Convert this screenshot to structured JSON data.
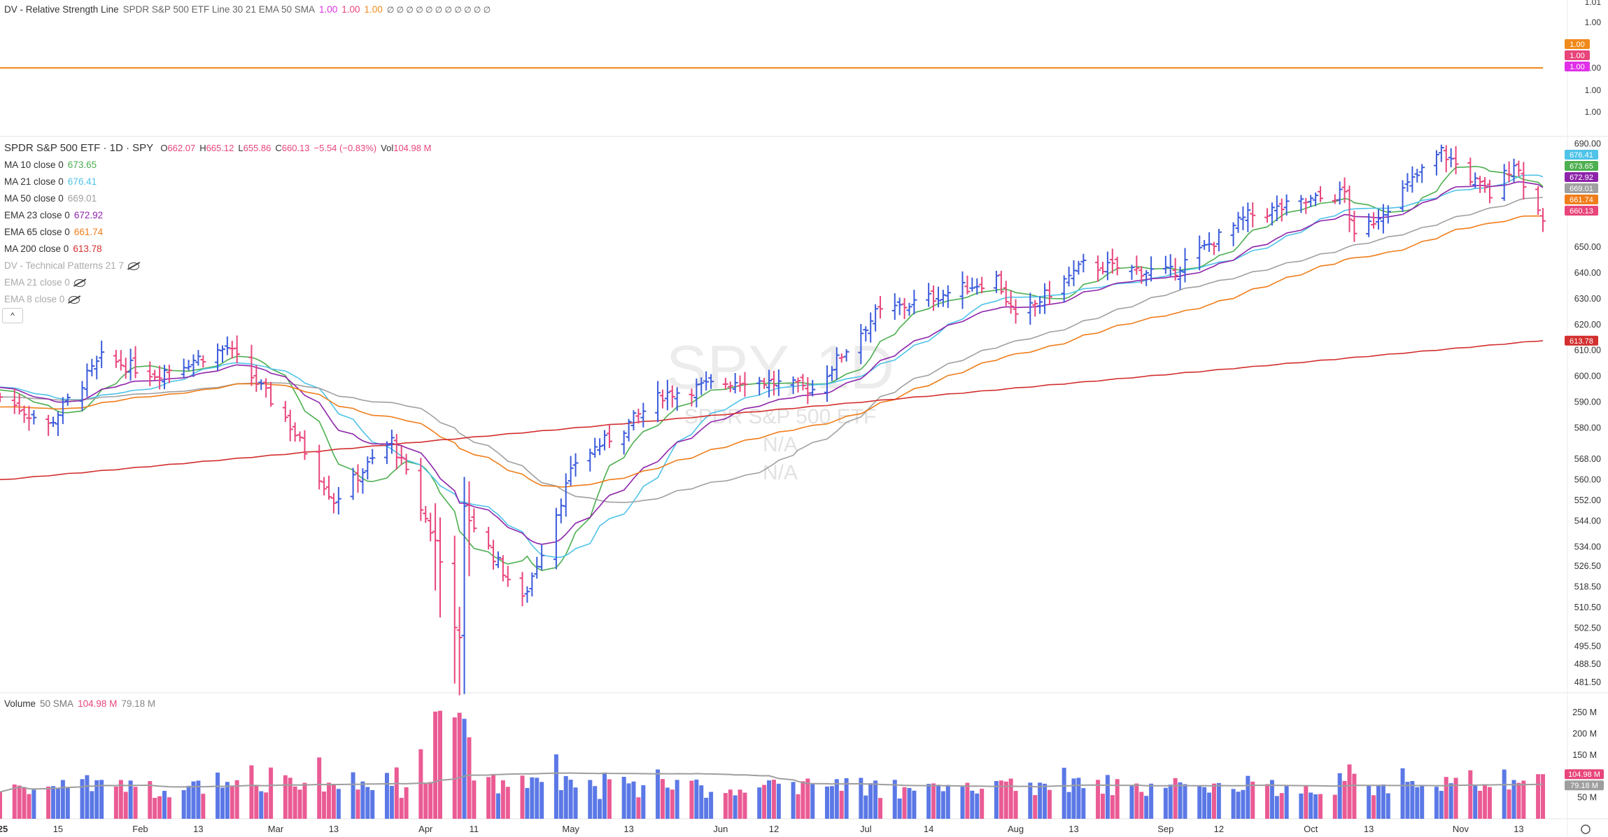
{
  "rs_legend": {
    "title": "DV - Relative Strength Line",
    "params": "SPDR S&P 500 ETF Line 30 21 EMA 50 SMA",
    "v1": "1.00",
    "v2": "1.00",
    "v3": "1.00",
    "tail": "∅ ∅ ∅ ∅ ∅ ∅ ∅ ∅ ∅ ∅ ∅"
  },
  "rs_axis": {
    "ticks": [
      "1.01",
      "1.00",
      "1.00",
      "1.00",
      "1.00"
    ],
    "tags": [
      {
        "label": "1.00",
        "color": "#f08a1c"
      },
      {
        "label": "1.00",
        "color": "#e8457a"
      },
      {
        "label": "1.00",
        "color": "#e030e8"
      }
    ]
  },
  "header": {
    "symbol_line": "SPDR S&P 500 ETF · 1D · SPY",
    "o_label": "O",
    "o": "662.07",
    "h_label": "H",
    "h": "665.12",
    "l_label": "L",
    "l": "655.86",
    "c_label": "C",
    "c": "660.13",
    "change": "−5.54 (−0.83%)",
    "vol_label": "Vol",
    "vol": "104.98 M"
  },
  "indicators": [
    {
      "label": "MA 10 close 0",
      "value": "673.65",
      "color": "#4caf50"
    },
    {
      "label": "MA 21 close 0",
      "value": "676.41",
      "color": "#4fc3e8"
    },
    {
      "label": "MA 50 close 0",
      "value": "669.01",
      "color": "#a0a0a0"
    },
    {
      "label": "EMA 23 close 0",
      "value": "672.92",
      "color": "#8e24aa"
    },
    {
      "label": "EMA 65 close 0",
      "value": "661.74",
      "color": "#ef7d1a"
    },
    {
      "label": "MA 200 close 0",
      "value": "613.78",
      "color": "#d32f2f"
    }
  ],
  "hidden_indicators": [
    {
      "label": "DV - Technical Patterns 21 7"
    },
    {
      "label": "EMA 21 close 0"
    },
    {
      "label": "EMA 8 close 0"
    }
  ],
  "collapse_label": "^",
  "watermark": {
    "symbol": "SPY, 1D",
    "name": "SPDR S&P 500 ETF",
    "l1": "N/A",
    "l2": "N/A"
  },
  "price_axis": {
    "ticks": [
      "690.00",
      "650.00",
      "640.00",
      "630.00",
      "620.00",
      "610.00",
      "600.00",
      "590.00",
      "580.00",
      "568.00",
      "560.00",
      "552.00",
      "544.00",
      "534.00",
      "526.50",
      "518.50",
      "510.50",
      "502.50",
      "495.50",
      "488.50",
      "481.50"
    ]
  },
  "price_tags": [
    {
      "label": "676.41",
      "color": "#4fc3e8"
    },
    {
      "label": "673.65",
      "color": "#4caf50"
    },
    {
      "label": "672.92",
      "color": "#8e24aa"
    },
    {
      "label": "669.01",
      "color": "#a0a0a0"
    },
    {
      "label": "661.74",
      "color": "#ef7d1a"
    },
    {
      "label": "660.13",
      "color": "#e8457a"
    },
    {
      "label": "613.78",
      "color": "#d32f2f"
    }
  ],
  "volume_legend": {
    "title": "Volume",
    "sma": "50 SMA",
    "v1": "104.98 M",
    "v2": "79.18 M"
  },
  "volume_axis": {
    "ticks": [
      "250 M",
      "200 M",
      "150 M",
      "50 M"
    ]
  },
  "volume_tags": [
    {
      "label": "104.98 M",
      "color": "#e8457a"
    },
    {
      "label": "79.18 M",
      "color": "#9e9e9e"
    }
  ],
  "x_axis": {
    "labels": [
      "25",
      "15",
      "Feb",
      "13",
      "Mar",
      "13",
      "Apr",
      "11",
      "May",
      "13",
      "Jun",
      "12",
      "Jul",
      "14",
      "Aug",
      "13",
      "Sep",
      "12",
      "Oct",
      "13",
      "Nov",
      "13"
    ]
  },
  "colors": {
    "up": "#3b5bdb",
    "down": "#e8457a",
    "rs_line": "#f08a1c"
  },
  "chart_data": {
    "type": "ohlc",
    "title": "SPDR S&P 500 ETF · 1D · SPY",
    "x_range": [
      "2025-01-03",
      "2025-11-18"
    ],
    "ylim": [
      478,
      692
    ],
    "volume_ylim": [
      0,
      270
    ],
    "volume_unit": "M",
    "checkpoints": [
      {
        "date": "2025-01-03",
        "close": 592
      },
      {
        "date": "2025-01-13",
        "close": 581
      },
      {
        "date": "2025-01-24",
        "close": 607
      },
      {
        "date": "2025-02-04",
        "close": 601
      },
      {
        "date": "2025-02-19",
        "close": 611
      },
      {
        "date": "2025-03-03",
        "close": 584
      },
      {
        "date": "2025-03-13",
        "close": 552
      },
      {
        "date": "2025-03-25",
        "close": 575
      },
      {
        "date": "2025-04-03",
        "close": 536
      },
      {
        "date": "2025-04-08",
        "close": 497
      },
      {
        "date": "2025-04-09",
        "close": 548
      },
      {
        "date": "2025-04-21",
        "close": 513
      },
      {
        "date": "2025-05-02",
        "close": 567
      },
      {
        "date": "2025-05-12",
        "close": 580
      },
      {
        "date": "2025-05-20",
        "close": 593
      },
      {
        "date": "2025-06-06",
        "close": 599
      },
      {
        "date": "2025-06-20",
        "close": 595
      },
      {
        "date": "2025-07-03",
        "close": 624
      },
      {
        "date": "2025-07-28",
        "close": 638
      },
      {
        "date": "2025-08-01",
        "close": 622
      },
      {
        "date": "2025-08-15",
        "close": 643
      },
      {
        "date": "2025-09-02",
        "close": 640
      },
      {
        "date": "2025-09-18",
        "close": 662
      },
      {
        "date": "2025-10-08",
        "close": 671
      },
      {
        "date": "2025-10-10",
        "close": 653
      },
      {
        "date": "2025-10-28",
        "close": 687
      },
      {
        "date": "2025-11-07",
        "close": 670
      },
      {
        "date": "2025-11-12",
        "close": 683
      },
      {
        "date": "2025-11-18",
        "close": 660.13
      }
    ],
    "last_bar": {
      "open": 662.07,
      "high": 665.12,
      "low": 655.86,
      "close": 660.13,
      "volume_m": 104.98
    },
    "series": [
      {
        "name": "MA 10",
        "last": 673.65
      },
      {
        "name": "MA 21",
        "last": 676.41
      },
      {
        "name": "MA 50",
        "last": 669.01
      },
      {
        "name": "EMA 23",
        "last": 672.92
      },
      {
        "name": "EMA 65",
        "last": 661.74
      },
      {
        "name": "MA 200",
        "last": 613.78
      },
      {
        "name": "Volume 50 SMA",
        "last": 79.18
      }
    ]
  }
}
